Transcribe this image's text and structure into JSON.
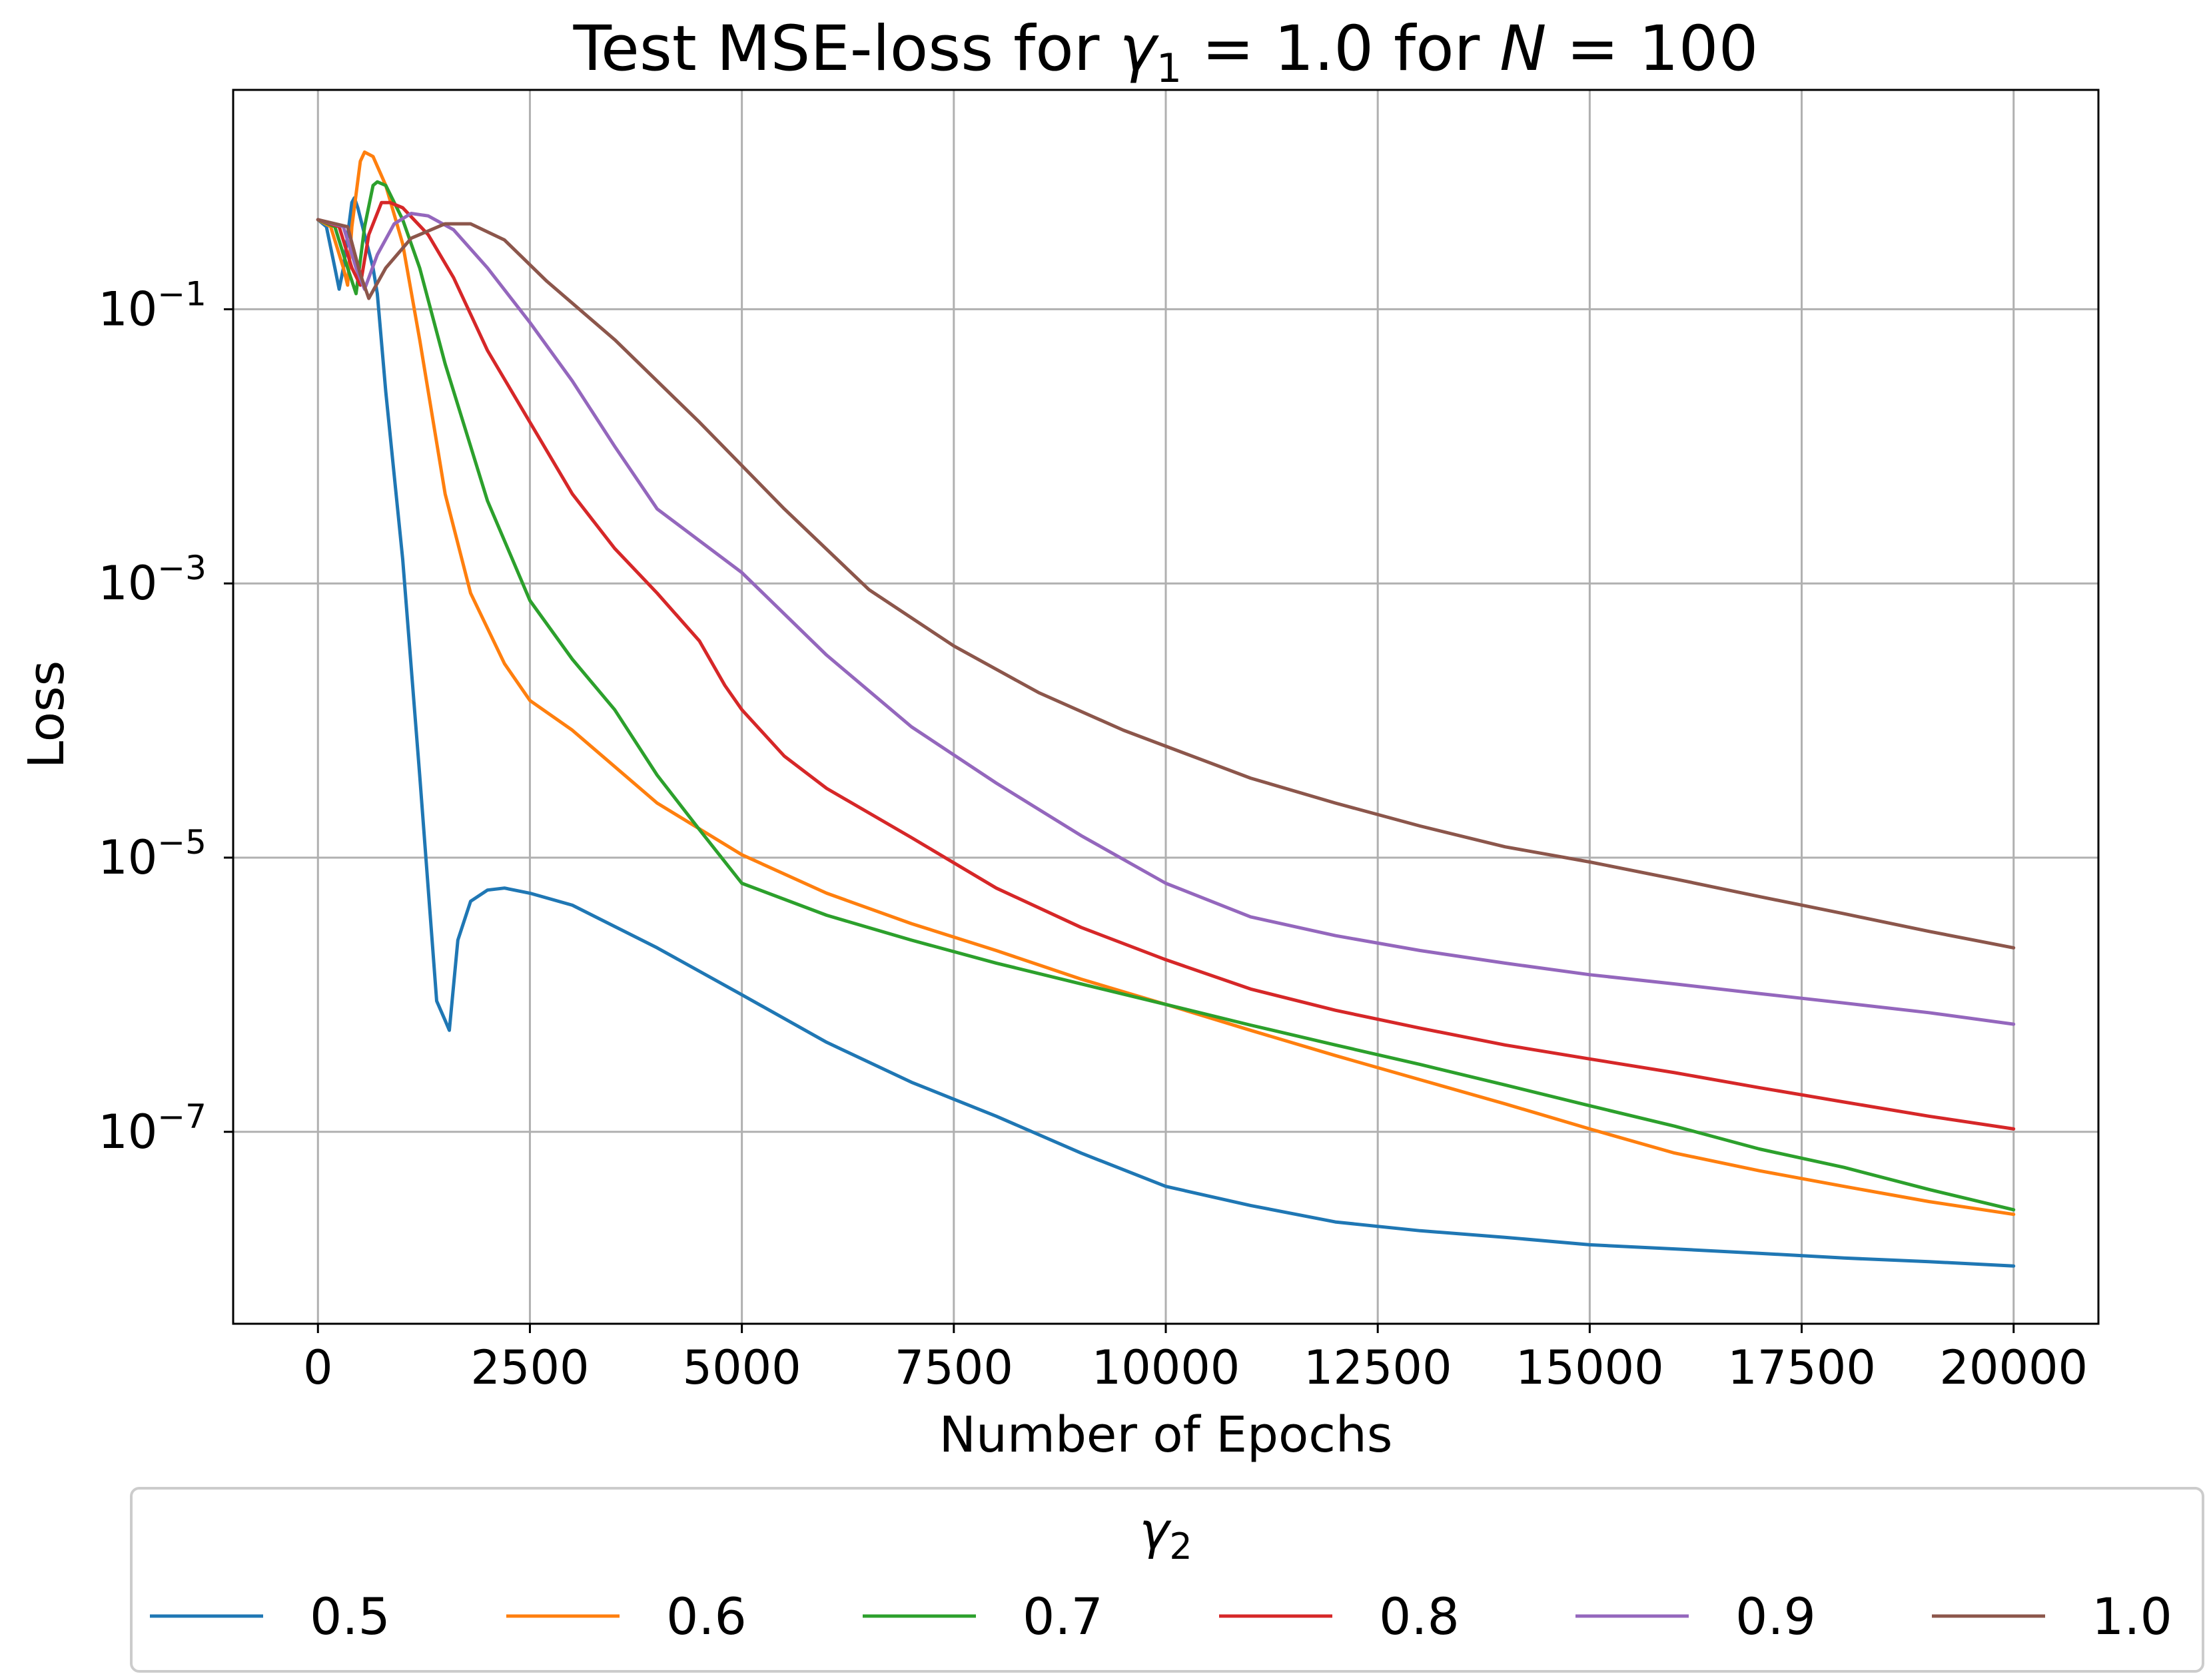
{
  "chart_data": {
    "type": "line",
    "title": {
      "prefix": "Test MSE-loss for ",
      "g1": "γ",
      "g1sub": "1",
      "mid1": " = 1.0 for ",
      "n": "N",
      "mid2": " = 100"
    },
    "xlabel": "Number of Epochs",
    "ylabel": "Loss",
    "xlim": [
      -1000,
      21000
    ],
    "ylim_log10": [
      -8.4,
      0.6
    ],
    "y_scale": "log",
    "grid": true,
    "x_ticks": [
      0,
      2500,
      5000,
      7500,
      10000,
      12500,
      15000,
      17500,
      20000
    ],
    "x_tick_labels": [
      "0",
      "2500",
      "5000",
      "7500",
      "10000",
      "12500",
      "15000",
      "17500",
      "20000"
    ],
    "y_ticks_exponent": [
      -1,
      -3,
      -5,
      -7
    ],
    "y_tick_base": "10",
    "y_tick_exps": [
      "−1",
      "−3",
      "−5",
      "−7"
    ],
    "legend": {
      "title_symbol": "γ",
      "title_sub": "2",
      "placement": "bottom",
      "columns": 6
    },
    "series": [
      {
        "name": "0.5",
        "color": "#1f77b4",
        "points": [
          [
            0,
            0.45
          ],
          [
            100,
            0.4
          ],
          [
            200,
            0.2
          ],
          [
            250,
            0.14
          ],
          [
            300,
            0.2
          ],
          [
            400,
            0.6
          ],
          [
            430,
            0.65
          ],
          [
            470,
            0.55
          ],
          [
            550,
            0.35
          ],
          [
            650,
            0.2
          ],
          [
            700,
            0.13
          ],
          [
            800,
            0.025
          ],
          [
            1000,
            0.0015
          ],
          [
            1200,
            4e-05
          ],
          [
            1400,
            9e-07
          ],
          [
            1500,
            6.5e-07
          ],
          [
            1550,
            5.5e-07
          ],
          [
            1650,
            2.5e-06
          ],
          [
            1800,
            4.8e-06
          ],
          [
            2000,
            5.8e-06
          ],
          [
            2200,
            6e-06
          ],
          [
            2500,
            5.5e-06
          ],
          [
            3000,
            4.5e-06
          ],
          [
            4000,
            2.2e-06
          ],
          [
            5000,
            1e-06
          ],
          [
            6000,
            4.5e-07
          ],
          [
            7000,
            2.3e-07
          ],
          [
            8000,
            1.3e-07
          ],
          [
            9000,
            7e-08
          ],
          [
            10000,
            4e-08
          ],
          [
            11000,
            2.9e-08
          ],
          [
            12000,
            2.2e-08
          ],
          [
            13000,
            1.9e-08
          ],
          [
            14000,
            1.7e-08
          ],
          [
            15000,
            1.5e-08
          ],
          [
            16000,
            1.4e-08
          ],
          [
            17000,
            1.3e-08
          ],
          [
            18000,
            1.2e-08
          ],
          [
            19000,
            1.13e-08
          ],
          [
            20000,
            1.05e-08
          ]
        ]
      },
      {
        "name": "0.6",
        "color": "#ff7f0e",
        "points": [
          [
            0,
            0.45
          ],
          [
            150,
            0.4
          ],
          [
            300,
            0.2
          ],
          [
            350,
            0.15
          ],
          [
            400,
            0.4
          ],
          [
            500,
            1.2
          ],
          [
            550,
            1.4
          ],
          [
            650,
            1.3
          ],
          [
            800,
            0.8
          ],
          [
            1000,
            0.3
          ],
          [
            1200,
            0.06
          ],
          [
            1500,
            0.0045
          ],
          [
            1800,
            0.00085
          ],
          [
            2200,
            0.00026
          ],
          [
            2500,
            0.00014
          ],
          [
            3000,
            8.5e-05
          ],
          [
            4000,
            2.5e-05
          ],
          [
            5000,
            1.05e-05
          ],
          [
            6000,
            5.5e-06
          ],
          [
            7000,
            3.3e-06
          ],
          [
            8000,
            2.1e-06
          ],
          [
            9000,
            1.3e-06
          ],
          [
            10000,
            8.5e-07
          ],
          [
            11000,
            5.5e-07
          ],
          [
            12000,
            3.6e-07
          ],
          [
            13000,
            2.4e-07
          ],
          [
            14000,
            1.6e-07
          ],
          [
            15000,
            1.05e-07
          ],
          [
            16000,
            7e-08
          ],
          [
            17000,
            5.2e-08
          ],
          [
            18000,
            4e-08
          ],
          [
            19000,
            3.1e-08
          ],
          [
            20000,
            2.5e-08
          ]
        ]
      },
      {
        "name": "0.7",
        "color": "#2ca02c",
        "points": [
          [
            0,
            0.45
          ],
          [
            200,
            0.4
          ],
          [
            350,
            0.2
          ],
          [
            450,
            0.13
          ],
          [
            550,
            0.4
          ],
          [
            650,
            0.8
          ],
          [
            700,
            0.85
          ],
          [
            800,
            0.8
          ],
          [
            1000,
            0.45
          ],
          [
            1200,
            0.2
          ],
          [
            1500,
            0.04
          ],
          [
            2000,
            0.004
          ],
          [
            2500,
            0.00075
          ],
          [
            3000,
            0.00028
          ],
          [
            3500,
            0.00012
          ],
          [
            4000,
            4e-05
          ],
          [
            4500,
            1.6e-05
          ],
          [
            5000,
            6.5e-06
          ],
          [
            6000,
            3.8e-06
          ],
          [
            7000,
            2.5e-06
          ],
          [
            8000,
            1.7e-06
          ],
          [
            9000,
            1.2e-06
          ],
          [
            10000,
            8.5e-07
          ],
          [
            11000,
            6e-07
          ],
          [
            12000,
            4.3e-07
          ],
          [
            13000,
            3.1e-07
          ],
          [
            14000,
            2.2e-07
          ],
          [
            15000,
            1.55e-07
          ],
          [
            16000,
            1.1e-07
          ],
          [
            17000,
            7.5e-08
          ],
          [
            18000,
            5.5e-08
          ],
          [
            19000,
            3.8e-08
          ],
          [
            20000,
            2.7e-08
          ]
        ]
      },
      {
        "name": "0.8",
        "color": "#d62728",
        "points": [
          [
            0,
            0.45
          ],
          [
            250,
            0.4
          ],
          [
            400,
            0.2
          ],
          [
            500,
            0.15
          ],
          [
            600,
            0.35
          ],
          [
            750,
            0.6
          ],
          [
            850,
            0.6
          ],
          [
            1000,
            0.55
          ],
          [
            1300,
            0.35
          ],
          [
            1600,
            0.17
          ],
          [
            2000,
            0.05
          ],
          [
            2500,
            0.015
          ],
          [
            3000,
            0.0045
          ],
          [
            3500,
            0.0018
          ],
          [
            4000,
            0.00085
          ],
          [
            4500,
            0.00038
          ],
          [
            4800,
            0.00018
          ],
          [
            5000,
            0.00012
          ],
          [
            5500,
            5.5e-05
          ],
          [
            6000,
            3.2e-05
          ],
          [
            7000,
            1.4e-05
          ],
          [
            8000,
            6e-06
          ],
          [
            9000,
            3.1e-06
          ],
          [
            10000,
            1.8e-06
          ],
          [
            11000,
            1.1e-06
          ],
          [
            12000,
            7.7e-07
          ],
          [
            13000,
            5.7e-07
          ],
          [
            14000,
            4.3e-07
          ],
          [
            15000,
            3.4e-07
          ],
          [
            16000,
            2.7e-07
          ],
          [
            17000,
            2.1e-07
          ],
          [
            18000,
            1.65e-07
          ],
          [
            19000,
            1.3e-07
          ],
          [
            20000,
            1.05e-07
          ]
        ]
      },
      {
        "name": "0.9",
        "color": "#9467bd",
        "points": [
          [
            0,
            0.45
          ],
          [
            300,
            0.4
          ],
          [
            450,
            0.2
          ],
          [
            550,
            0.14
          ],
          [
            700,
            0.25
          ],
          [
            900,
            0.42
          ],
          [
            1100,
            0.5
          ],
          [
            1300,
            0.48
          ],
          [
            1600,
            0.38
          ],
          [
            2000,
            0.2
          ],
          [
            2500,
            0.08
          ],
          [
            3000,
            0.03
          ],
          [
            3500,
            0.01
          ],
          [
            4000,
            0.0035
          ],
          [
            5000,
            0.0012
          ],
          [
            6000,
            0.0003
          ],
          [
            7000,
            9e-05
          ],
          [
            8000,
            3.5e-05
          ],
          [
            9000,
            1.45e-05
          ],
          [
            10000,
            6.5e-06
          ],
          [
            11000,
            3.7e-06
          ],
          [
            12000,
            2.7e-06
          ],
          [
            13000,
            2.1e-06
          ],
          [
            14000,
            1.7e-06
          ],
          [
            15000,
            1.4e-06
          ],
          [
            16000,
            1.2e-06
          ],
          [
            17000,
            1.02e-06
          ],
          [
            18000,
            8.7e-07
          ],
          [
            19000,
            7.4e-07
          ],
          [
            20000,
            6.1e-07
          ]
        ]
      },
      {
        "name": "1.0",
        "color": "#8c564b",
        "points": [
          [
            0,
            0.45
          ],
          [
            350,
            0.4
          ],
          [
            500,
            0.18
          ],
          [
            600,
            0.12
          ],
          [
            800,
            0.2
          ],
          [
            1100,
            0.33
          ],
          [
            1500,
            0.42
          ],
          [
            1800,
            0.42
          ],
          [
            2200,
            0.32
          ],
          [
            2700,
            0.16
          ],
          [
            3500,
            0.06
          ],
          [
            4500,
            0.015
          ],
          [
            5500,
            0.0035
          ],
          [
            6500,
            0.0009
          ],
          [
            7500,
            0.00035
          ],
          [
            8500,
            0.00016
          ],
          [
            9500,
            8.5e-05
          ],
          [
            10000,
            6.5e-05
          ],
          [
            11000,
            3.8e-05
          ],
          [
            12000,
            2.5e-05
          ],
          [
            13000,
            1.7e-05
          ],
          [
            14000,
            1.2e-05
          ],
          [
            15000,
            9.3e-06
          ],
          [
            16000,
            7e-06
          ],
          [
            17000,
            5.2e-06
          ],
          [
            18000,
            3.9e-06
          ],
          [
            19000,
            2.9e-06
          ],
          [
            20000,
            2.2e-06
          ]
        ]
      }
    ]
  }
}
